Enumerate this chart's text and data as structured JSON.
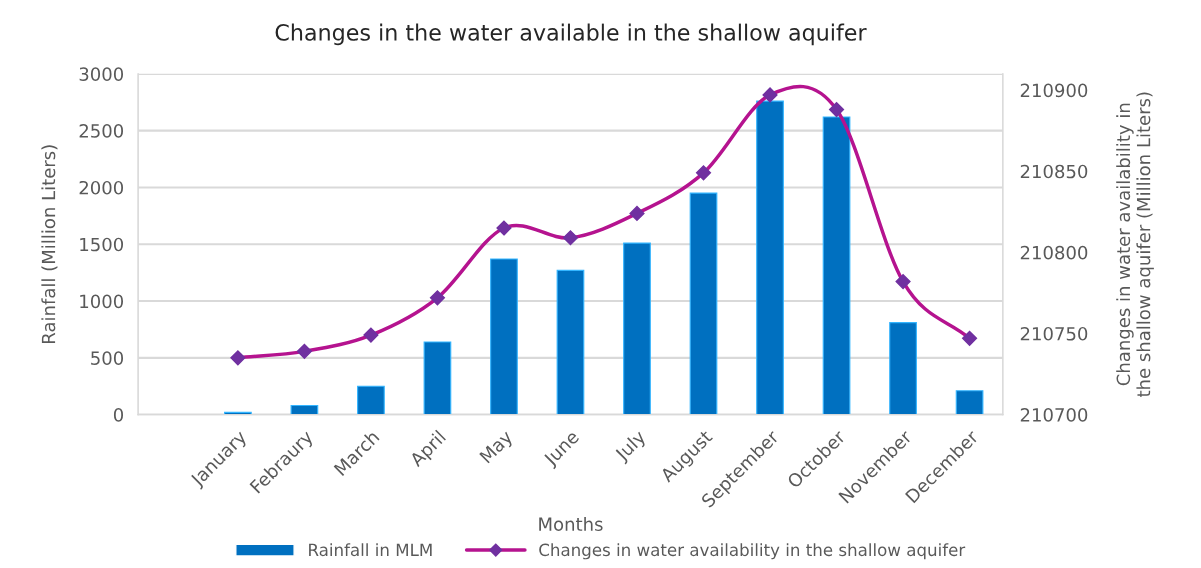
{
  "chart_data": {
    "type": "bar",
    "title": "Changes in the water available in the shallow aquifer",
    "xlabel": "Months",
    "ylabel": "Rainfall (Million Liters)",
    "y2label": "Changes in water availability in\nthe shallow aquifer (Million Liters)",
    "categories": [
      null,
      "January",
      "Febraury",
      "March",
      "April",
      "May",
      "June",
      "July",
      "August",
      "September",
      "October",
      "November",
      "December"
    ],
    "series": [
      {
        "name": "Rainfall in MLM",
        "color": "#0070c0",
        "values": [
          null,
          20,
          80,
          250,
          640,
          1370,
          1270,
          1510,
          1950,
          2760,
          2620,
          810,
          210
        ]
      },
      {
        "name": "Changes in water availability in the shallow aquifer",
        "type": "line",
        "axis": "y2",
        "color": "#b5138f",
        "marker": "diamond",
        "line_style": "solid",
        "values": [
          null,
          210735,
          210739,
          210749,
          210772,
          210815,
          210809,
          210824,
          210849,
          210897,
          210888,
          210782,
          210747
        ]
      }
    ],
    "ylim": [
      0,
      3000
    ],
    "yticks": [
      0,
      500,
      1000,
      1500,
      2000,
      2500,
      3000
    ],
    "y2lim": [
      210700,
      210910
    ],
    "y2ticks": [
      210700,
      210750,
      210800,
      210850,
      210900
    ],
    "grid": "y",
    "legend": "bottom"
  }
}
